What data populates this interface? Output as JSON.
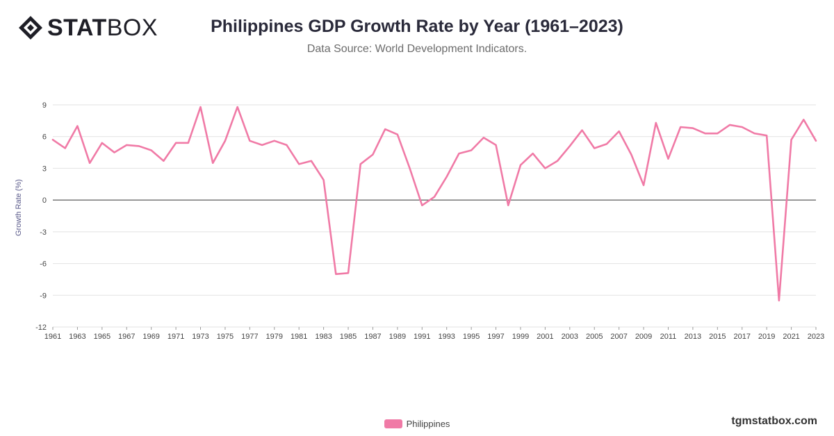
{
  "logo": {
    "text_bold": "STAT",
    "text_light": "BOX"
  },
  "header": {
    "title": "Philippines GDP Growth Rate by Year (1961–2023)",
    "subtitle": "Data Source: World Development Indicators."
  },
  "footer": {
    "brand": "tgmstatbox.com"
  },
  "colors": {
    "series": "#f07aa6",
    "grid": "#e2e2e2",
    "zero_line": "#333333",
    "logo": "#1e1e26"
  },
  "chart_data": {
    "type": "line",
    "title": "Philippines GDP Growth Rate by Year (1961–2023)",
    "subtitle": "Data Source: World Development Indicators.",
    "xlabel": "",
    "ylabel": "Growth Rate (%)",
    "ylim": [
      -12,
      9
    ],
    "yticks": [
      9,
      6,
      3,
      0,
      -3,
      -6,
      -9,
      -12
    ],
    "grid": true,
    "legend_position": "bottom",
    "x": [
      1961,
      1962,
      1963,
      1964,
      1965,
      1966,
      1967,
      1968,
      1969,
      1970,
      1971,
      1972,
      1973,
      1974,
      1975,
      1976,
      1977,
      1978,
      1979,
      1980,
      1981,
      1982,
      1983,
      1984,
      1985,
      1986,
      1987,
      1988,
      1989,
      1990,
      1991,
      1992,
      1993,
      1994,
      1995,
      1996,
      1997,
      1998,
      1999,
      2000,
      2001,
      2002,
      2003,
      2004,
      2005,
      2006,
      2007,
      2008,
      2009,
      2010,
      2011,
      2012,
      2013,
      2014,
      2015,
      2016,
      2017,
      2018,
      2019,
      2020,
      2021,
      2022,
      2023
    ],
    "xtick_labels": [
      "1961",
      "1963",
      "1965",
      "1967",
      "1969",
      "1971",
      "1973",
      "1975",
      "1977",
      "1979",
      "1981",
      "1983",
      "1985",
      "1987",
      "1989",
      "1991",
      "1993",
      "1995",
      "1997",
      "1999",
      "2001",
      "2003",
      "2005",
      "2007",
      "2009",
      "2011",
      "2013",
      "2015",
      "2017",
      "2019",
      "2021",
      "2023"
    ],
    "series": [
      {
        "name": "Philippines",
        "values": [
          5.7,
          4.9,
          7.0,
          3.5,
          5.4,
          4.5,
          5.2,
          5.1,
          4.7,
          3.7,
          5.4,
          5.4,
          8.8,
          3.5,
          5.6,
          8.8,
          5.6,
          5.2,
          5.6,
          5.2,
          3.4,
          3.7,
          1.9,
          -7.0,
          -6.9,
          3.4,
          4.3,
          6.7,
          6.2,
          3.0,
          -0.5,
          0.3,
          2.2,
          4.4,
          4.7,
          5.9,
          5.2,
          -0.5,
          3.3,
          4.4,
          3.0,
          3.7,
          5.1,
          6.6,
          4.9,
          5.3,
          6.5,
          4.3,
          1.4,
          7.3,
          3.9,
          6.9,
          6.8,
          6.3,
          6.3,
          7.1,
          6.9,
          6.3,
          6.1,
          -9.5,
          5.7,
          7.6,
          5.6
        ]
      }
    ]
  }
}
